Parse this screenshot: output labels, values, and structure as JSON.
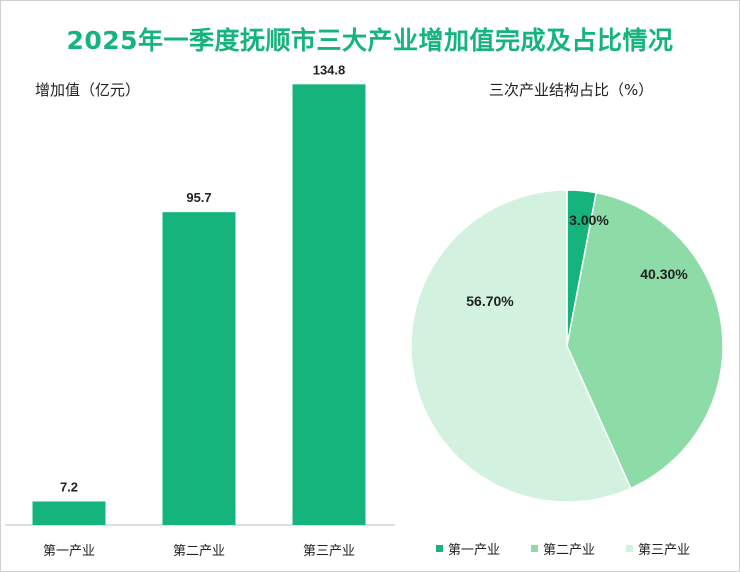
{
  "page": {
    "title": "2025年一季度抚顺市三大产业增加值完成及占比情况"
  },
  "colors": {
    "title": "#14b47c",
    "primary": "#14b47c",
    "secondary": "#8ddba6",
    "tertiary": "#d2f1de",
    "axis": "#bfbfbf"
  },
  "chart_data": [
    {
      "type": "bar",
      "title": "",
      "ylabel": "增加值（亿元）",
      "categories": [
        "第一产业",
        "第二产业",
        "第三产业"
      ],
      "values": [
        7.2,
        95.7,
        134.8
      ],
      "value_labels": [
        "7.2",
        "95.7",
        "134.8"
      ],
      "ylim": [
        0,
        145
      ],
      "grid": false
    },
    {
      "type": "pie",
      "title": "三次产业结构占比（%）",
      "categories": [
        "第一产业",
        "第二产业",
        "第三产业"
      ],
      "values": [
        3.0,
        40.3,
        56.7
      ],
      "value_labels": [
        "3.00%",
        "40.30%",
        "56.70%"
      ],
      "legend": "bottom"
    }
  ]
}
